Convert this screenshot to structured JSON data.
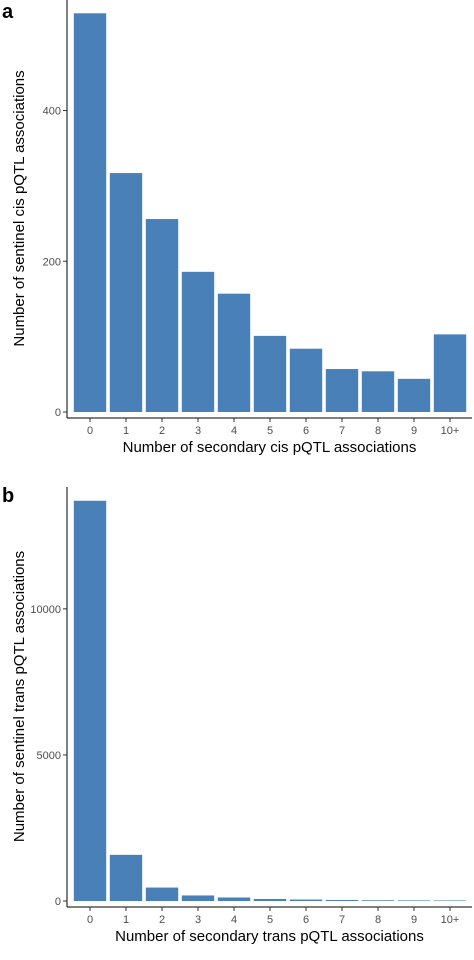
{
  "chart_data": [
    {
      "panel": "a",
      "type": "bar",
      "categories": [
        "0",
        "1",
        "2",
        "3",
        "4",
        "5",
        "6",
        "7",
        "8",
        "9",
        "10+"
      ],
      "values": [
        529,
        317,
        256,
        186,
        157,
        101,
        84,
        57,
        54,
        44,
        103
      ],
      "xlabel": "Number of secondary cis pQTL associations",
      "ylabel": "Number of sentinel cis pQTL associations",
      "yticks": [
        0,
        200,
        400
      ],
      "ylim": [
        0,
        540
      ],
      "bar_color": "#4a80b8",
      "grid": false
    },
    {
      "panel": "b",
      "type": "bar",
      "categories": [
        "0",
        "1",
        "2",
        "3",
        "4",
        "5",
        "6",
        "7",
        "8",
        "9",
        "10+"
      ],
      "values": [
        13700,
        1580,
        460,
        190,
        120,
        70,
        50,
        35,
        25,
        20,
        18
      ],
      "xlabel": "Number of secondary trans pQTL associations",
      "ylabel": "Number of sentinel trans pQTL associations",
      "yticks": [
        0,
        5000,
        10000
      ],
      "ylim": [
        0,
        14000
      ],
      "bar_color": "#4a80b8",
      "grid": false
    }
  ]
}
